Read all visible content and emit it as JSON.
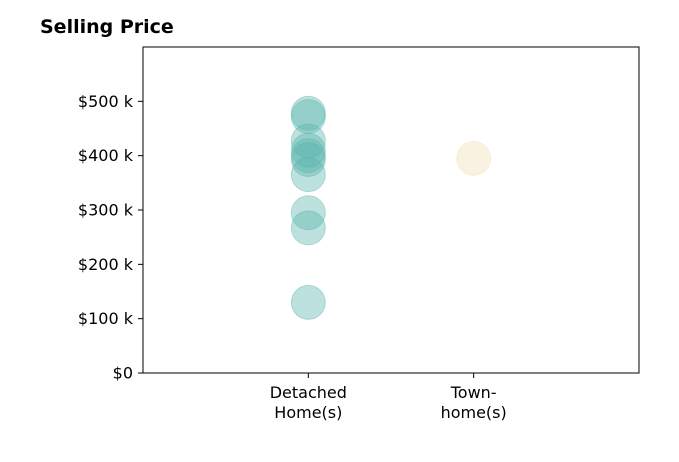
{
  "chart_data": {
    "type": "scatter",
    "title": "Selling Price",
    "xlabel": "",
    "ylabel": "",
    "categories": [
      [
        "Detached",
        "Home(s)"
      ],
      [
        "Town-",
        "home(s)"
      ]
    ],
    "ylim": [
      0,
      600000
    ],
    "yticks": [
      0,
      100000,
      200000,
      300000,
      400000,
      500000
    ],
    "ytick_labels": [
      "$0",
      "$100 k",
      "$200 k",
      "$300 k",
      "$400 k",
      "$500 k"
    ],
    "grid": false,
    "legend": "none",
    "series": [
      {
        "category_index": 0,
        "color": "#5ab4ac",
        "values": [
          478000,
          472000,
          427000,
          410000,
          400000,
          393000,
          365000,
          295000,
          267000,
          130000
        ]
      },
      {
        "category_index": 1,
        "color": "#f2deb1",
        "values": [
          395000
        ]
      }
    ]
  }
}
